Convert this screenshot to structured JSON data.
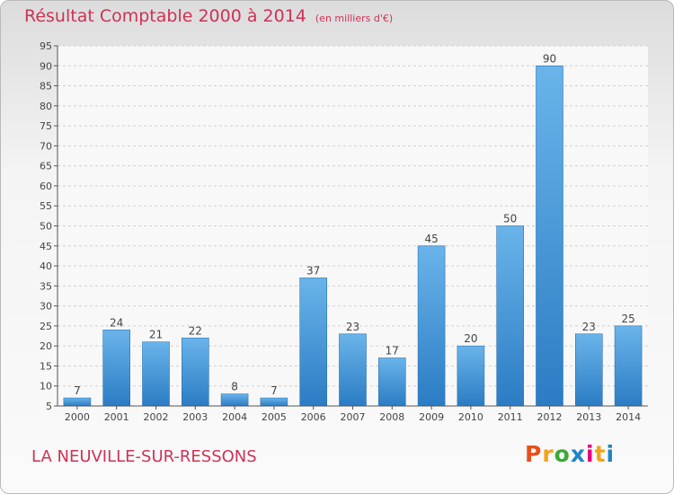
{
  "chart_data": {
    "type": "bar",
    "title": "Résultat Comptable 2000 à 2014",
    "subtitle": "(en milliers d'€)",
    "categories": [
      "2000",
      "2001",
      "2002",
      "2003",
      "2004",
      "2005",
      "2006",
      "2007",
      "2008",
      "2009",
      "2010",
      "2011",
      "2012",
      "2013",
      "2014"
    ],
    "values": [
      7,
      24,
      21,
      22,
      8,
      7,
      37,
      23,
      17,
      45,
      20,
      50,
      90,
      23,
      25
    ],
    "ylim": [
      5,
      95
    ],
    "yticks": [
      5,
      10,
      15,
      20,
      25,
      30,
      35,
      40,
      45,
      50,
      55,
      60,
      65,
      70,
      75,
      80,
      85,
      90,
      95
    ],
    "grid": true,
    "bar_color": "#3d8fd6"
  },
  "footer": {
    "location": "LA NEUVILLE-SUR-RESSONS",
    "logo_text": "Proxiti",
    "logo_colors": [
      "#e94e1b",
      "#f3a41c",
      "#3aa935",
      "#1c86c8",
      "#e6007e",
      "#f3a41c",
      "#1c86c8"
    ]
  }
}
